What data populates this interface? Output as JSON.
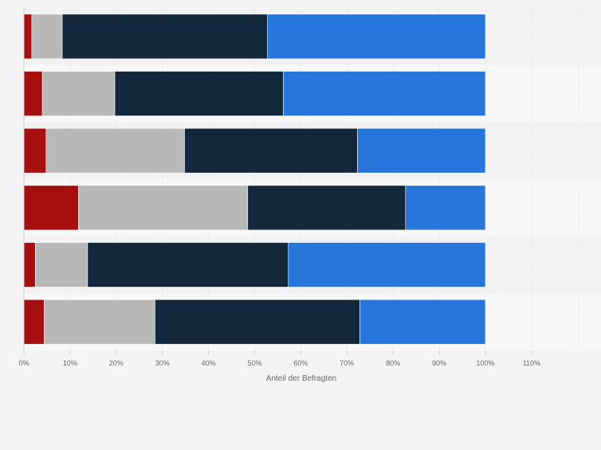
{
  "chart_data": {
    "type": "bar",
    "orientation": "horizontal",
    "stacked": true,
    "categories": [
      "",
      "",
      "",
      "",
      "",
      ""
    ],
    "series": [
      {
        "color": "#a50f0f",
        "values": [
          1.7,
          4.0,
          4.8,
          11.8,
          2.5,
          4.4
        ]
      },
      {
        "color": "#b8b8b8",
        "values": [
          6.6,
          15.7,
          30.0,
          36.7,
          11.3,
          24.0
        ]
      },
      {
        "color": "#12263c",
        "values": [
          44.5,
          36.5,
          37.5,
          34.2,
          43.5,
          44.4
        ]
      },
      {
        "color": "#2776db",
        "values": [
          47.2,
          43.8,
          27.7,
          17.3,
          42.7,
          27.2
        ]
      }
    ],
    "xlabel": "Anteil der Befragten",
    "xticks": [
      "0%",
      "10%",
      "20%",
      "30%",
      "40%",
      "50%",
      "60%",
      "70%",
      "80%",
      "90%",
      "100%",
      "110%"
    ],
    "xlim": [
      0,
      120
    ],
    "grid": true,
    "legend": "none"
  }
}
